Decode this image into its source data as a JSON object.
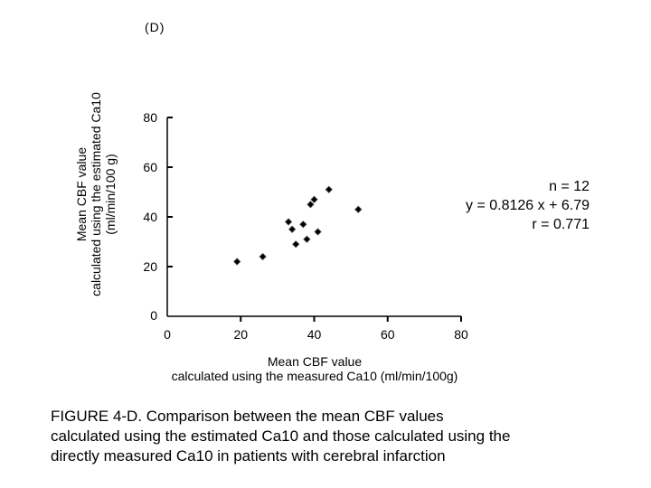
{
  "chart_data": {
    "type": "scatter",
    "panel_label": "(D)",
    "xlabel_lines": [
      "Mean CBF value",
      "calculated using the  measured Ca10 (ml/min/100g)"
    ],
    "ylabel_lines": [
      "Mean CBF value",
      "calculated using the estimated Ca10",
      "(ml/min/100 g)"
    ],
    "xlim": [
      0,
      80
    ],
    "ylim": [
      0,
      80
    ],
    "x_ticks": [
      0,
      20,
      40,
      60,
      80
    ],
    "y_ticks": [
      20,
      40,
      60,
      80
    ],
    "y_zero_label": "0",
    "series": [
      {
        "name": "patients",
        "points": [
          {
            "x": 19,
            "y": 22
          },
          {
            "x": 26,
            "y": 24
          },
          {
            "x": 33,
            "y": 38
          },
          {
            "x": 34,
            "y": 35
          },
          {
            "x": 35,
            "y": 29
          },
          {
            "x": 37,
            "y": 37
          },
          {
            "x": 38,
            "y": 31
          },
          {
            "x": 39,
            "y": 45
          },
          {
            "x": 40,
            "y": 47
          },
          {
            "x": 41,
            "y": 34
          },
          {
            "x": 44,
            "y": 51
          },
          {
            "x": 52,
            "y": 43
          }
        ]
      }
    ],
    "annotation": {
      "n": "n = 12",
      "equation": "y = 0.8126 x + 6.79",
      "r": "r = 0.771"
    }
  },
  "caption": {
    "lines": [
      " FIGURE  4-D. Comparison between the mean CBF values",
      "calculated using the estimated Ca10 and those calculated using the",
      "directly measured Ca10 in patients with cerebral infarction"
    ]
  }
}
